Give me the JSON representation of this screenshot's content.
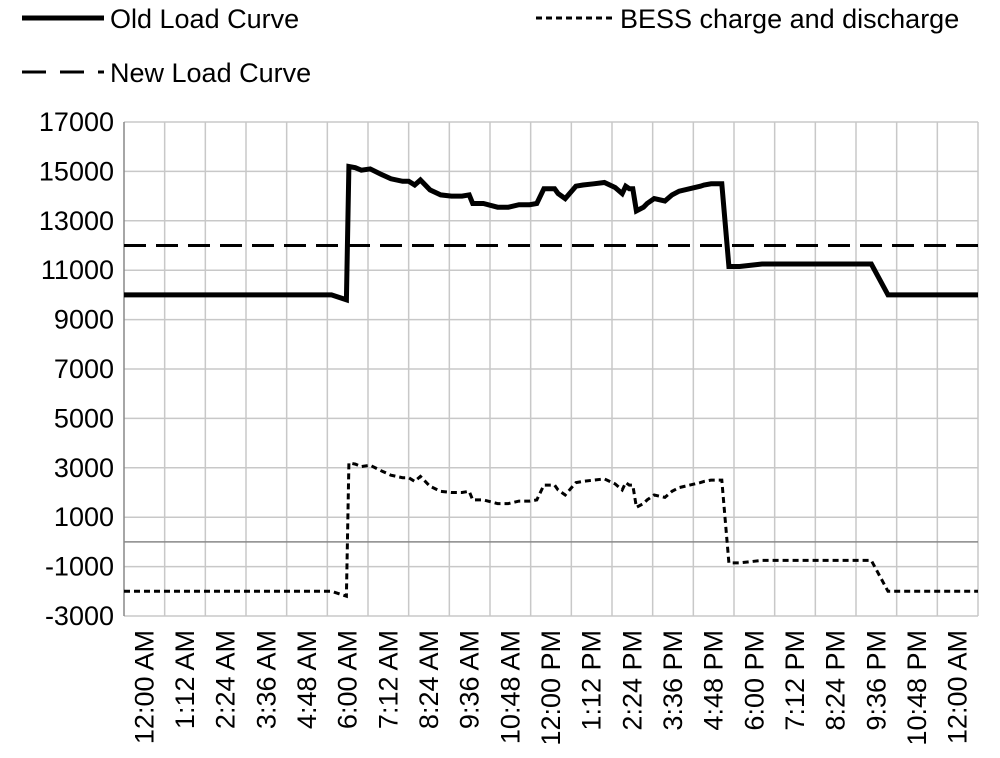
{
  "chart_data": {
    "type": "line",
    "title": "",
    "xlabel": "",
    "ylabel": "",
    "ylim": [
      -3000,
      17000
    ],
    "y_ticks": [
      17000,
      15000,
      13000,
      11000,
      9000,
      7000,
      5000,
      3000,
      1000,
      -1000,
      -3000
    ],
    "x_tick_labels": [
      "12:00 AM",
      "1:12 AM",
      "2:24 AM",
      "3:36 AM",
      "4:48 AM",
      "6:00 AM",
      "7:12 AM",
      "8:24 AM",
      "9:36 AM",
      "10:48 AM",
      "12:00 PM",
      "1:12 PM",
      "2:24 PM",
      "3:36 PM",
      "4:48 PM",
      "6:00 PM",
      "7:12 PM",
      "8:24 PM",
      "9:36 PM",
      "10:48 PM",
      "12:00 AM"
    ],
    "x_unit": "hours since 12:00 AM",
    "xlim": [
      0,
      24
    ],
    "grid": true,
    "legend_position": "top",
    "series": [
      {
        "name": "Old Load Curve",
        "style": "solid-thick",
        "color": "#000000",
        "x": [
          0,
          5.5,
          5.83,
          6.25,
          6.32,
          6.5,
          6.67,
          6.92,
          7.2,
          7.5,
          7.83,
          8.0,
          8.17,
          8.33,
          8.6,
          8.9,
          9.2,
          9.5,
          9.7,
          9.8,
          10.1,
          10.5,
          10.8,
          11.1,
          11.4,
          11.6,
          11.8,
          12.1,
          12.2,
          12.4,
          12.7,
          12.9,
          13.2,
          13.5,
          13.8,
          14.0,
          14.1,
          14.2,
          14.3,
          14.4,
          14.6,
          14.7,
          14.9,
          15.2,
          15.4,
          15.6,
          15.9,
          16.2,
          16.3,
          16.5,
          16.8,
          17.0,
          17.3,
          17.93,
          18.0,
          18.5,
          20.0,
          21.0,
          21.47,
          21.5,
          24.0
        ],
        "y": [
          10000,
          10000,
          10000,
          9800,
          15200,
          15150,
          15050,
          15100,
          14900,
          14700,
          14600,
          14600,
          14450,
          14650,
          14250,
          14050,
          14000,
          14000,
          14050,
          13700,
          13700,
          13550,
          13550,
          13650,
          13650,
          13700,
          14300,
          14300,
          14100,
          13900,
          14400,
          14450,
          14500,
          14550,
          14350,
          14100,
          14400,
          14300,
          14300,
          13400,
          13550,
          13700,
          13900,
          13800,
          14050,
          14200,
          14300,
          14400,
          14450,
          14500,
          14500,
          11150,
          11150,
          11250,
          11250,
          11250,
          11250,
          11250,
          10000,
          10000,
          10000
        ]
      },
      {
        "name": "New Load Curve",
        "style": "long-dash",
        "color": "#000000",
        "x": [
          0,
          24
        ],
        "y": [
          12000,
          12000
        ]
      },
      {
        "name": "BESS charge and discharge",
        "style": "short-dash",
        "color": "#000000",
        "x": [
          0,
          5.5,
          5.83,
          6.25,
          6.32,
          6.5,
          6.67,
          6.92,
          7.2,
          7.5,
          7.83,
          8.0,
          8.17,
          8.33,
          8.6,
          8.9,
          9.2,
          9.5,
          9.7,
          9.8,
          10.1,
          10.5,
          10.8,
          11.1,
          11.4,
          11.6,
          11.8,
          12.1,
          12.2,
          12.4,
          12.7,
          12.9,
          13.2,
          13.5,
          13.8,
          14.0,
          14.1,
          14.2,
          14.3,
          14.4,
          14.6,
          14.7,
          14.9,
          15.2,
          15.4,
          15.6,
          15.9,
          16.2,
          16.3,
          16.5,
          16.8,
          17.0,
          17.3,
          17.93,
          18.0,
          18.5,
          20.0,
          21.0,
          21.47,
          21.5,
          24.0
        ],
        "y": [
          -2000,
          -2000,
          -2000,
          -2200,
          3200,
          3150,
          3050,
          3100,
          2900,
          2700,
          2600,
          2600,
          2450,
          2650,
          2250,
          2050,
          2000,
          2000,
          2050,
          1700,
          1700,
          1550,
          1550,
          1650,
          1650,
          1700,
          2300,
          2300,
          2100,
          1900,
          2400,
          2450,
          2500,
          2550,
          2350,
          2100,
          2400,
          2300,
          2300,
          1400,
          1550,
          1700,
          1900,
          1800,
          2050,
          2200,
          2300,
          2400,
          2450,
          2500,
          2500,
          -850,
          -850,
          -750,
          -750,
          -750,
          -750,
          -750,
          -2000,
          -2000,
          -2000
        ]
      }
    ]
  }
}
